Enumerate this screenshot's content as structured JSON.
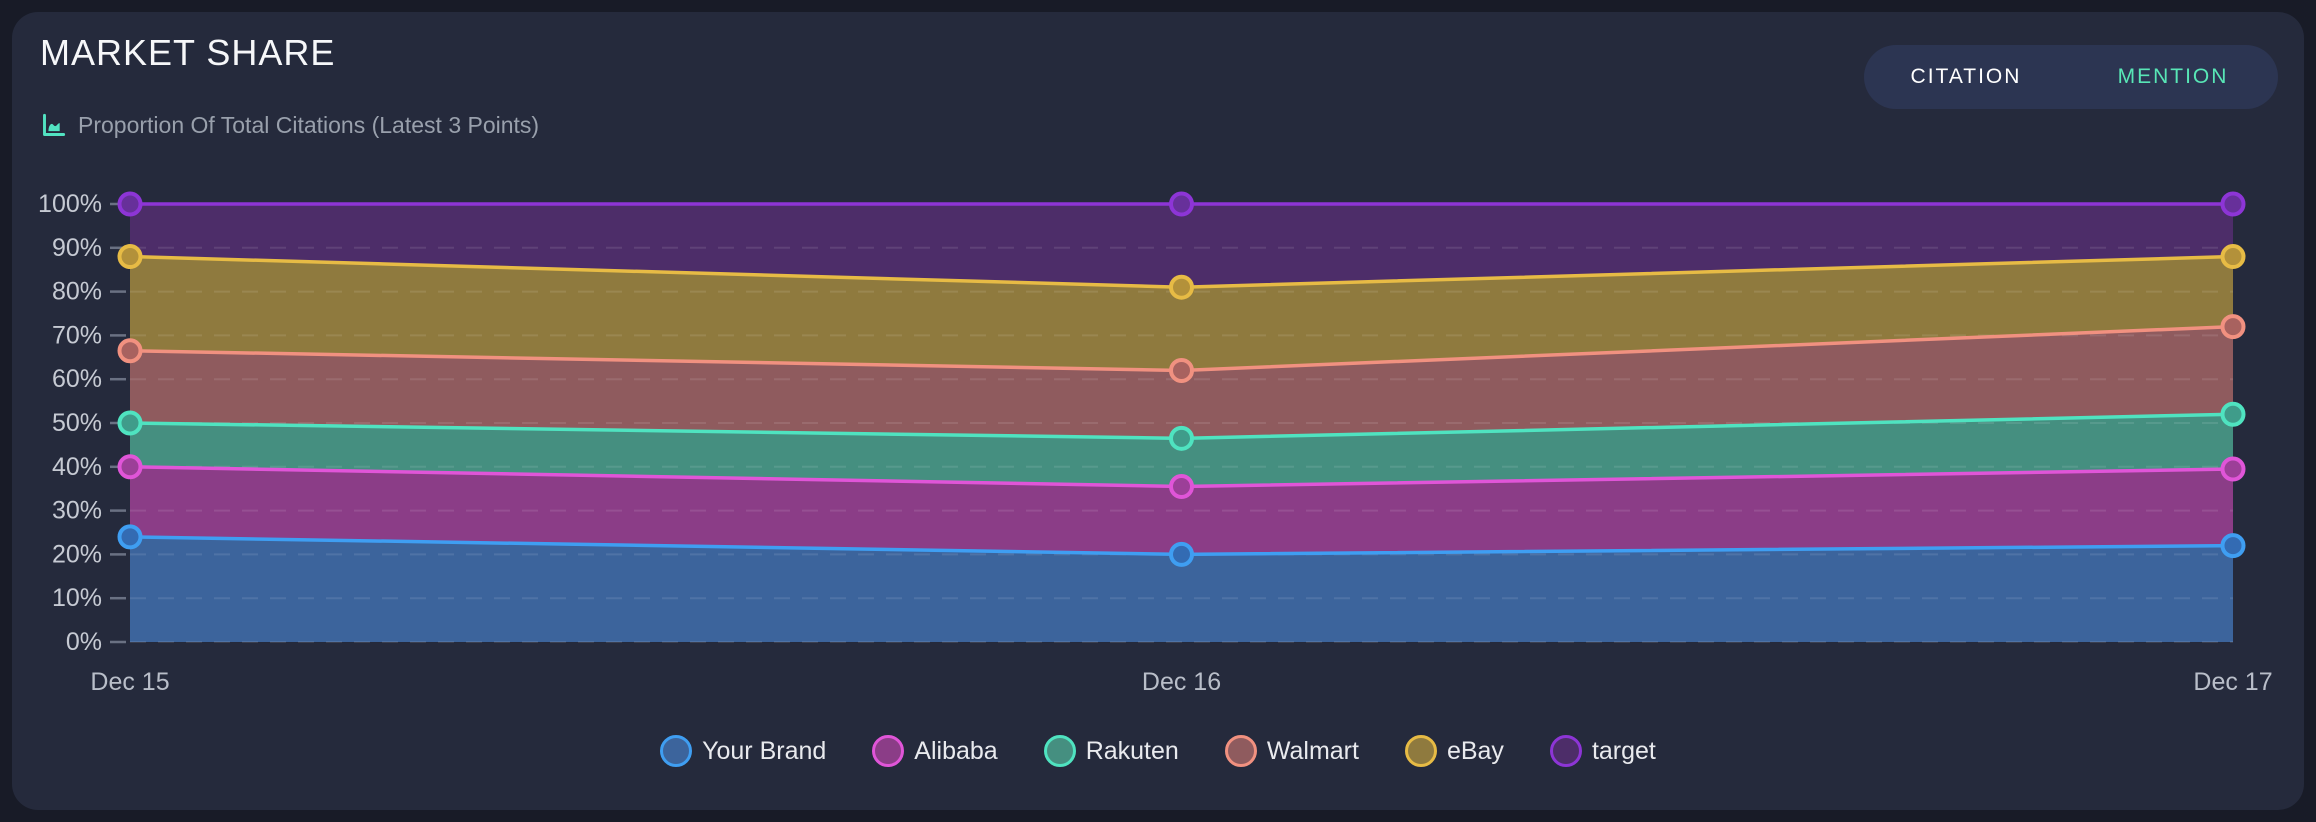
{
  "header": {
    "title": "MARKET SHARE",
    "subtitle": "Proportion Of Total Citations (Latest 3 Points)",
    "subtitle_icon": "area-chart-icon",
    "subtitle_icon_color": "#52e3c2"
  },
  "toggle": {
    "options": [
      {
        "label": "CITATION",
        "active": true
      },
      {
        "label": "MENTION",
        "active": false
      }
    ],
    "active_gradient": [
      "#d160c5",
      "#9b57e6"
    ],
    "inactive_bg": "#2c3552",
    "inactive_text_color": "#58e6b6"
  },
  "chart_data": {
    "type": "area",
    "stacked": true,
    "percent_axis": true,
    "title": "MARKET SHARE",
    "subtitle": "Proportion Of Total Citations (Latest 3 Points)",
    "x": [
      "Dec 15",
      "Dec 16",
      "Dec 17"
    ],
    "yticks": [
      0,
      10,
      20,
      30,
      40,
      50,
      60,
      70,
      80,
      90,
      100
    ],
    "ylim": [
      0,
      100
    ],
    "ytick_suffix": "%",
    "grid": "dashed-horizontal",
    "legend_position": "bottom",
    "values_are_cumulative_percent": true,
    "series": [
      {
        "name": "Your Brand",
        "cumulative_values": [
          24,
          20,
          22
        ],
        "line_color": "#3f9ef2",
        "fill_color": "#3c649c",
        "dot_fill": "#336bb3"
      },
      {
        "name": "Alibaba",
        "cumulative_values": [
          40,
          35.5,
          39.5
        ],
        "line_color": "#e055d8",
        "fill_color": "#8b3d87",
        "dot_fill": "#9c3f98"
      },
      {
        "name": "Rakuten",
        "cumulative_values": [
          50,
          46.5,
          52
        ],
        "line_color": "#4fe3c0",
        "fill_color": "#458f80",
        "dot_fill": "#3f9c8a"
      },
      {
        "name": "Walmart",
        "cumulative_values": [
          66.5,
          62,
          72
        ],
        "line_color": "#f19180",
        "fill_color": "#8f5b5e",
        "dot_fill": "#a8625f"
      },
      {
        "name": "eBay",
        "cumulative_values": [
          88,
          81,
          88
        ],
        "line_color": "#e7bb45",
        "fill_color": "#8f7a3e",
        "dot_fill": "#b3913a"
      },
      {
        "name": "target",
        "cumulative_values": [
          100,
          100,
          100
        ],
        "line_color": "#8d35d6",
        "fill_color": "#4d2d69",
        "dot_fill": "#67309a"
      }
    ],
    "axis_colors": {
      "ytick_text": "#c6cad3",
      "xtick_text": "#b9bec9",
      "tick_mark": "#6a7183",
      "gridline": "rgba(255,255,255,0.10)"
    }
  }
}
